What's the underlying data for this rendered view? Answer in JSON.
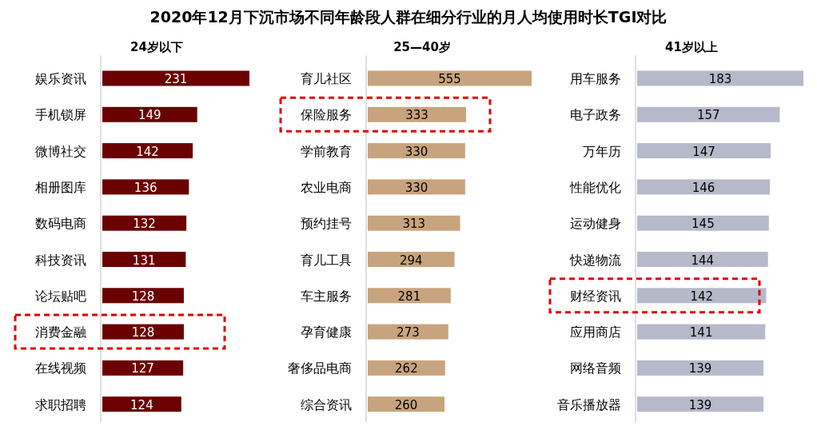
{
  "chart_data": [
    {
      "type": "bar",
      "orientation": "horizontal",
      "title": "2020年12月下沉市场不同年龄段人群在细分行业的月人均使用时长TGI对比",
      "subtitle": "24岁以下",
      "categories": [
        "娱乐资讯",
        "手机锁屏",
        "微博社交",
        "相册图库",
        "数码电商",
        "科技资讯",
        "论坛贴吧",
        "消费金融",
        "在线视频",
        "求职招聘"
      ],
      "values": [
        231,
        149,
        142,
        136,
        132,
        131,
        128,
        128,
        127,
        124
      ],
      "color": "#6b0000",
      "data_labels": true
    },
    {
      "type": "bar",
      "orientation": "horizontal",
      "subtitle": "25—40岁",
      "categories": [
        "育儿社区",
        "保险服务",
        "学前教育",
        "农业电商",
        "预约挂号",
        "育儿工具",
        "车主服务",
        "孕育健康",
        "奢侈品电商",
        "综合资讯"
      ],
      "values": [
        555,
        333,
        330,
        330,
        313,
        294,
        281,
        273,
        262,
        260
      ],
      "color": "#c8a47e",
      "data_labels": true
    },
    {
      "type": "bar",
      "orientation": "horizontal",
      "subtitle": "41岁以上",
      "categories": [
        "用车服务",
        "电子政务",
        "万年历",
        "性能优化",
        "运动健身",
        "快递物流",
        "财经资讯",
        "应用商店",
        "网络音频",
        "音乐播放器"
      ],
      "values": [
        183,
        157,
        147,
        146,
        145,
        144,
        142,
        141,
        139,
        139
      ],
      "color": "#b5b9c9",
      "data_labels": true
    }
  ]
}
